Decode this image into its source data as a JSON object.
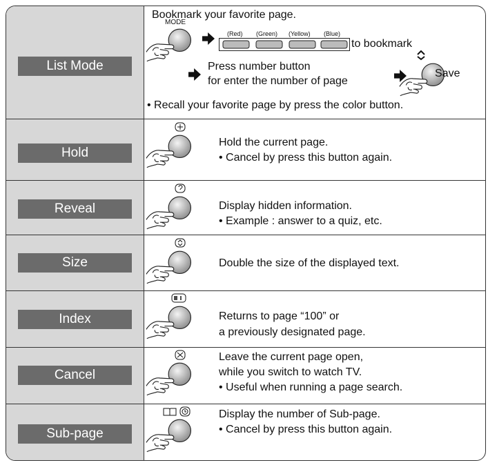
{
  "list_mode": {
    "label": "List Mode",
    "intro": "Bookmark your favorite page.",
    "mode": "MODE",
    "colors": [
      "(Red)",
      "(Green)",
      "(Yellow)",
      "(Blue)"
    ],
    "to_bookmark": "to bookmark",
    "press_1": "Press number button",
    "press_2": "for enter the number of page",
    "save": "Save",
    "recall": "• Recall your favorite page by press the color button."
  },
  "rows": [
    {
      "label": "Hold",
      "lines": [
        "Hold the current page.",
        "• Cancel by press this button again."
      ]
    },
    {
      "label": "Reveal",
      "lines": [
        "Display hidden information.",
        "• Example : answer to a quiz, etc."
      ]
    },
    {
      "label": "Size",
      "lines": [
        "Double the size of the displayed text."
      ]
    },
    {
      "label": "Index",
      "lines": [
        "Returns to page “100” or",
        "a previously designated page."
      ]
    },
    {
      "label": "Cancel",
      "lines": [
        "Leave the current page open,",
        "while you switch to watch TV.",
        "• Useful when running a page search."
      ]
    },
    {
      "label": "Sub-page",
      "lines": [
        "Display the number of Sub-page.",
        "• Cancel by press this button again."
      ]
    }
  ]
}
